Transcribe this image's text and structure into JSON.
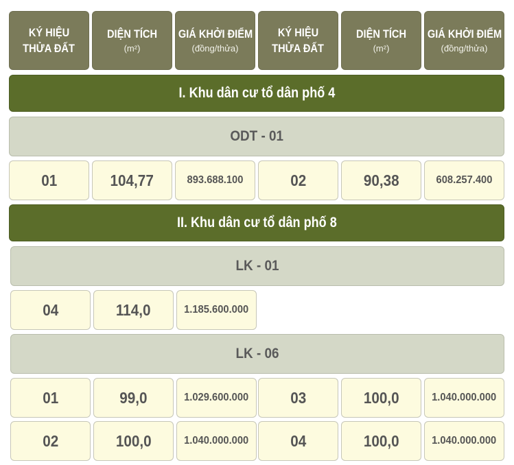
{
  "header": [
    {
      "title_line1": "KÝ HIỆU",
      "title_line2": "THỬA ĐẤT",
      "sub": ""
    },
    {
      "title_line1": "DIỆN TÍCH",
      "title_line2": "",
      "sub": "(m²)"
    },
    {
      "title_line1": "GIÁ KHỞI ĐIỂM",
      "title_line2": "",
      "sub": "(đồng/thửa)"
    },
    {
      "title_line1": "KÝ HIỆU",
      "title_line2": "THỬA ĐẤT",
      "sub": ""
    },
    {
      "title_line1": "DIỆN TÍCH",
      "title_line2": "",
      "sub": "(m²)"
    },
    {
      "title_line1": "GIÁ KHỞI ĐIỂM",
      "title_line2": "",
      "sub": "(đồng/thửa)"
    }
  ],
  "section1": {
    "title": "I. Khu dân cư tổ dân phố 4",
    "group": "ODT - 01",
    "rows": [
      {
        "a_id": "01",
        "a_area": "104,77",
        "a_price": "893.688.100",
        "b_id": "02",
        "b_area": "90,38",
        "b_price": "608.257.400"
      }
    ]
  },
  "section2": {
    "title": "II. Khu dân cư tổ dân phố 8",
    "group1": "LK - 01",
    "group1_rows": [
      {
        "a_id": "04",
        "a_area": "114,0",
        "a_price": "1.185.600.000"
      }
    ],
    "group2": "LK - 06",
    "group2_rows": [
      {
        "a_id": "01",
        "a_area": "99,0",
        "a_price": "1.029.600.000",
        "b_id": "03",
        "b_area": "100,0",
        "b_price": "1.040.000.000"
      },
      {
        "a_id": "02",
        "a_area": "100,0",
        "a_price": "1.040.000.000",
        "b_id": "04",
        "b_area": "100,0",
        "b_price": "1.040.000.000"
      }
    ]
  }
}
